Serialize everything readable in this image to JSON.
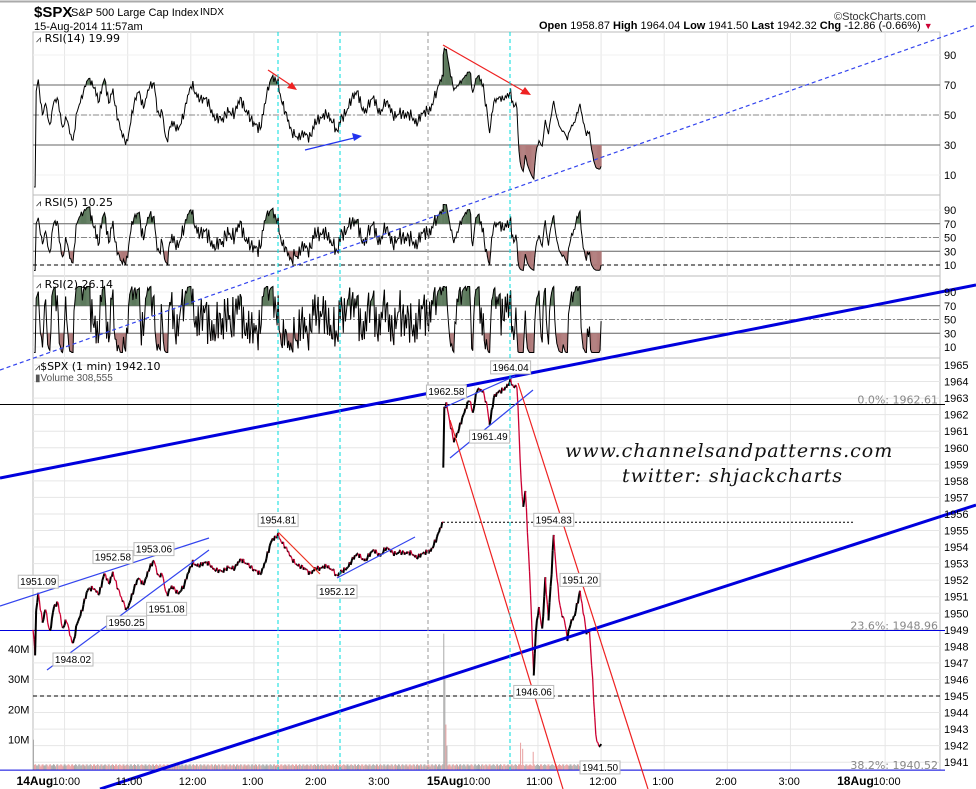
{
  "header": {
    "symbol": "$SPX",
    "name": "S&P 500 Large Cap Index",
    "exchange": "INDX",
    "datetime": "15-Aug-2014 11:57am",
    "copyright": "©StockCharts.com",
    "open_label": "Open",
    "open": "1958.87",
    "high_label": "High",
    "high": "1964.04",
    "low_label": "Low",
    "low": "1941.50",
    "last_label": "Last",
    "last": "1942.32",
    "chg_label": "Chg",
    "chg": "-12.86 (-0.66%)",
    "chg_direction": "down"
  },
  "panels": {
    "rsi14": {
      "label": "RSI(14) 19.99",
      "period": 14
    },
    "rsi5": {
      "label": "RSI(5) 10.25",
      "period": 5
    },
    "rsi2": {
      "label": "RSI(2) 26.14",
      "period": 2
    },
    "price": {
      "label": "$SPX (1 min) 1942.10",
      "volume_label": "Volume 308,555"
    }
  },
  "watermark": {
    "line1": "www.channelsandpatterns.com",
    "line2": "twitter: shjackcharts"
  },
  "colors": {
    "up": "#000000",
    "down": "#cc0033",
    "overbought_fill": "#5d7a5d",
    "oversold_fill": "#b07a7a",
    "trendline": "#0000ee",
    "marker": "#00dddd",
    "volume": "#aaaaaa",
    "volume_down": "#e8a0a0"
  },
  "chart_data": {
    "type": "line",
    "interval": "1 min",
    "ylim": [
      1940.5,
      1965.3
    ],
    "price_ticks": [
      1941,
      1942,
      1943,
      1944,
      1945,
      1946,
      1947,
      1948,
      1949,
      1950,
      1951,
      1952,
      1953,
      1954,
      1955,
      1956,
      1957,
      1958,
      1959,
      1960,
      1961,
      1962,
      1963,
      1964,
      1965
    ],
    "rsi_ticks_14": [
      90,
      70,
      50,
      30,
      10
    ],
    "rsi_ticks_small": [
      90,
      70,
      50,
      30,
      10
    ],
    "volume_ticks": [
      "40M",
      "30M",
      "20M",
      "10M"
    ],
    "x_ticks": [
      {
        "day": 0,
        "minute": 30,
        "day_label": "14Aug",
        "label": "10:00"
      },
      {
        "day": 0,
        "minute": 90,
        "label": "11:00"
      },
      {
        "day": 0,
        "minute": 150,
        "label": "12:00"
      },
      {
        "day": 0,
        "minute": 210,
        "label": "1:00"
      },
      {
        "day": 0,
        "minute": 270,
        "label": "2:00"
      },
      {
        "day": 0,
        "minute": 330,
        "label": "3:00"
      },
      {
        "day": 1,
        "minute": 30,
        "day_label": "15Aug",
        "label": "10:00"
      },
      {
        "day": 1,
        "minute": 90,
        "label": "11:00"
      },
      {
        "day": 1,
        "minute": 150,
        "label": "12:00"
      },
      {
        "day": 1,
        "minute": 210,
        "label": "1:00"
      },
      {
        "day": 1,
        "minute": 270,
        "label": "2:00"
      },
      {
        "day": 1,
        "minute": 330,
        "label": "3:00"
      },
      {
        "day": 2,
        "minute": 30,
        "day_label": "18Aug",
        "label": "10:00"
      }
    ],
    "series": [
      {
        "day": "14Aug",
        "points": [
          [
            0,
            1949
          ],
          [
            2,
            1947.5
          ],
          [
            3,
            1950
          ],
          [
            5,
            1951.09
          ],
          [
            9,
            1949.5
          ],
          [
            12,
            1950.4
          ],
          [
            16,
            1948.8
          ],
          [
            20,
            1950.3
          ],
          [
            24,
            1950.6
          ],
          [
            28,
            1949.2
          ],
          [
            32,
            1949.6
          ],
          [
            35,
            1948.6
          ],
          [
            38,
            1948.02
          ],
          [
            42,
            1949.5
          ],
          [
            47,
            1950.3
          ],
          [
            52,
            1951.3
          ],
          [
            58,
            1951.6
          ],
          [
            63,
            1951.2
          ],
          [
            68,
            1952.3
          ],
          [
            72,
            1951.8
          ],
          [
            76,
            1952.58
          ],
          [
            80,
            1951.6
          ],
          [
            84,
            1950.8
          ],
          [
            89,
            1950.25
          ],
          [
            95,
            1951.3
          ],
          [
            100,
            1952
          ],
          [
            105,
            1951.8
          ],
          [
            110,
            1952.7
          ],
          [
            115,
            1953.06
          ],
          [
            119,
            1952.2
          ],
          [
            123,
            1952.5
          ],
          [
            127,
            1951.08
          ],
          [
            132,
            1951.5
          ],
          [
            138,
            1951.3
          ],
          [
            144,
            1951.7
          ],
          [
            148,
            1952.4
          ],
          [
            152,
            1953.1
          ],
          [
            160,
            1952.9
          ],
          [
            168,
            1953
          ],
          [
            175,
            1952.6
          ],
          [
            180,
            1952.4
          ],
          [
            186,
            1952.9
          ],
          [
            192,
            1952.7
          ],
          [
            198,
            1953.2
          ],
          [
            204,
            1953.1
          ],
          [
            210,
            1952.5
          ],
          [
            216,
            1952.4
          ],
          [
            222,
            1953.4
          ],
          [
            227,
            1954.3
          ],
          [
            230,
            1954.5
          ],
          [
            233,
            1954.81
          ],
          [
            238,
            1954.2
          ],
          [
            245,
            1953.3
          ],
          [
            252,
            1953
          ],
          [
            258,
            1952.6
          ],
          [
            263,
            1952.4
          ],
          [
            268,
            1952.8
          ],
          [
            274,
            1952.6
          ],
          [
            280,
            1952.9
          ],
          [
            285,
            1952.7
          ],
          [
            289,
            1952.12
          ],
          [
            295,
            1952.6
          ],
          [
            302,
            1953.1
          ],
          [
            309,
            1953.5
          ],
          [
            316,
            1953.3
          ],
          [
            324,
            1953.7
          ],
          [
            330,
            1953.6
          ],
          [
            335,
            1953.9
          ],
          [
            342,
            1953.6
          ],
          [
            348,
            1953.8
          ],
          [
            354,
            1953.5
          ],
          [
            360,
            1953.7
          ],
          [
            366,
            1953.4
          ],
          [
            371,
            1953.5
          ],
          [
            378,
            1953.9
          ],
          [
            384,
            1954.5
          ],
          [
            390,
            1955.5
          ]
        ]
      },
      {
        "day": "15Aug",
        "points": [
          [
            0,
            1958.8
          ],
          [
            1,
            1962.3
          ],
          [
            3,
            1962.58
          ],
          [
            6,
            1961.5
          ],
          [
            10,
            1960.5
          ],
          [
            15,
            1961.2
          ],
          [
            20,
            1962
          ],
          [
            25,
            1963
          ],
          [
            28,
            1962.2
          ],
          [
            32,
            1963.5
          ],
          [
            38,
            1963.3
          ],
          [
            42,
            1962.5
          ],
          [
            44,
            1961.49
          ],
          [
            48,
            1963
          ],
          [
            55,
            1963.4
          ],
          [
            60,
            1963.8
          ],
          [
            64,
            1964.04
          ],
          [
            67,
            1963.5
          ],
          [
            70,
            1963.7
          ],
          [
            72,
            1961
          ],
          [
            74,
            1958
          ],
          [
            76,
            1956.5
          ],
          [
            78,
            1957.5
          ],
          [
            80,
            1955
          ],
          [
            83,
            1951
          ],
          [
            86,
            1946.06
          ],
          [
            88,
            1949
          ],
          [
            91,
            1950.5
          ],
          [
            94,
            1949
          ],
          [
            97,
            1952
          ],
          [
            100,
            1949.5
          ],
          [
            103,
            1952.5
          ],
          [
            105,
            1954.83
          ],
          [
            107,
            1953
          ],
          [
            110,
            1951
          ],
          [
            112,
            1950
          ],
          [
            115,
            1949.5
          ],
          [
            118,
            1948.4
          ],
          [
            121,
            1949.5
          ],
          [
            125,
            1950
          ],
          [
            130,
            1951.2
          ],
          [
            133,
            1950
          ],
          [
            136,
            1948.9
          ],
          [
            139,
            1949
          ],
          [
            142,
            1946
          ],
          [
            145,
            1942.5
          ],
          [
            147,
            1942
          ],
          [
            149,
            1941.8
          ],
          [
            150,
            1942.1
          ]
        ]
      }
    ],
    "volume_M": {
      "baseline": 1.2,
      "spikes": [
        {
          "day": 1,
          "minute": 0,
          "value": 45
        },
        {
          "day": 1,
          "minute": 1,
          "value": 30
        },
        {
          "day": 1,
          "minute": 2,
          "value": 15
        },
        {
          "day": 1,
          "minute": 3,
          "value": 8
        },
        {
          "day": 0,
          "minute": 0,
          "value": 10
        },
        {
          "day": 1,
          "minute": 73,
          "value": 9
        },
        {
          "day": 1,
          "minute": 75,
          "value": 7
        },
        {
          "day": 1,
          "minute": 85,
          "value": 6
        }
      ]
    },
    "annotations": [
      {
        "day": 0,
        "minute": 5,
        "price": 1951.09,
        "text": "1951.09"
      },
      {
        "day": 0,
        "minute": 38,
        "price": 1948.02,
        "text": "1948.02",
        "below": true
      },
      {
        "day": 0,
        "minute": 76,
        "price": 1952.58,
        "text": "1952.58"
      },
      {
        "day": 0,
        "minute": 89,
        "price": 1950.25,
        "text": "1950.25",
        "below": true
      },
      {
        "day": 0,
        "minute": 115,
        "price": 1953.06,
        "text": "1953.06"
      },
      {
        "day": 0,
        "minute": 127,
        "price": 1951.08,
        "text": "1951.08",
        "below": true
      },
      {
        "day": 0,
        "minute": 233,
        "price": 1954.81,
        "text": "1954.81"
      },
      {
        "day": 0,
        "minute": 289,
        "price": 1952.12,
        "text": "1952.12",
        "below": true
      },
      {
        "day": 1,
        "minute": 3,
        "price": 1962.58,
        "text": "1962.58"
      },
      {
        "day": 1,
        "minute": 44,
        "price": 1961.49,
        "text": "1961.49",
        "below": true
      },
      {
        "day": 1,
        "minute": 64,
        "price": 1964.04,
        "text": "1964.04"
      },
      {
        "day": 1,
        "minute": 105,
        "price": 1954.83,
        "text": "1954.83"
      },
      {
        "day": 1,
        "minute": 86,
        "price": 1946.06,
        "text": "1946.06",
        "below": true
      },
      {
        "day": 1,
        "minute": 130,
        "price": 1951.2,
        "text": "1951.20"
      },
      {
        "day": 1,
        "minute": 149,
        "price": 1941.5,
        "text": "1941.50",
        "below": true
      }
    ],
    "fib_levels": [
      {
        "price": 1962.61,
        "text": "0.0%: 1962.61"
      },
      {
        "price": 1948.96,
        "text": "23.6%: 1948.96"
      },
      {
        "price": 1940.52,
        "text": "38.2%: 1940.52"
      }
    ],
    "horizontal_levels": [
      1945,
      1955.5
    ]
  }
}
